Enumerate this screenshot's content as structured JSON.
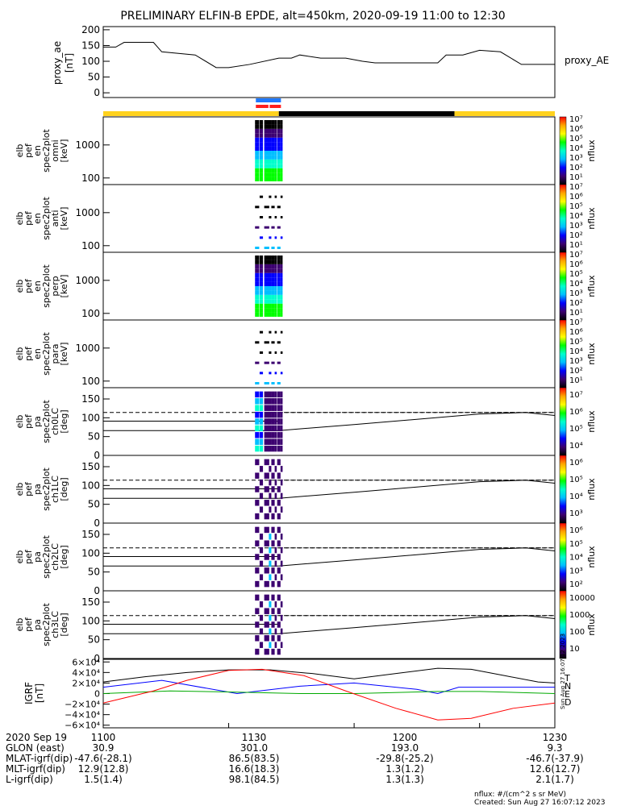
{
  "title": "PRELIMINARY ELFIN-B EPDE, alt=450km, 2020-09-19 11:00 to 12:30",
  "colors": {
    "phase_yellow": "#ffd21e",
    "phase_black": "#000000",
    "phase_blue": "#1e78ff",
    "phase_red": "#ff1e1e",
    "ae_line": "#000000",
    "lc_line": "#000000",
    "grf_T": "#000000",
    "grf_N": "#0000ff",
    "grf_E": "#00aa00",
    "grf_D": "#ff0000",
    "colorbar": [
      "#ff0000",
      "#ffa500",
      "#ffff00",
      "#00ff00",
      "#00ffcc",
      "#00bfff",
      "#0000ff",
      "#3c0070",
      "#000000"
    ]
  },
  "chart_data": [
    {
      "type": "line",
      "panel": "proxy_ae",
      "ylabel": [
        "proxy_ae",
        "[nT]"
      ],
      "right_label": "proxy_AE",
      "ylim": [
        -15,
        210
      ],
      "yticks": [
        0,
        50,
        100,
        150,
        200
      ],
      "x_minutes": [
        0,
        3,
        5,
        12,
        14,
        22,
        27,
        30,
        35,
        42,
        45,
        47,
        52,
        58,
        62,
        65,
        75,
        80,
        82,
        86,
        90,
        95,
        100,
        108
      ],
      "values": [
        145,
        145,
        160,
        160,
        130,
        120,
        80,
        80,
        90,
        110,
        110,
        120,
        110,
        110,
        100,
        95,
        95,
        95,
        120,
        120,
        135,
        130,
        90,
        90
      ]
    },
    {
      "type": "bar",
      "panel": "orbit_phase",
      "segments": [
        {
          "start": 0,
          "end": 42,
          "color": "yellow"
        },
        {
          "start": 42,
          "end": 84,
          "color": "black"
        },
        {
          "start": 84,
          "end": 108,
          "color": "yellow"
        }
      ],
      "blue_markers": [
        [
          36.5,
          42.5
        ]
      ],
      "red_markers": [
        [
          36.5,
          39.5
        ],
        [
          39.8,
          42.5
        ]
      ]
    },
    {
      "type": "heatmap",
      "panel": "omni",
      "ylabel": [
        "elb",
        "pef",
        "en",
        "spec2plot",
        "omni",
        "[keV]"
      ],
      "yticks": [
        "1000",
        "100"
      ],
      "colorbar": {
        "label": "nflux",
        "ticks": [
          "10^7",
          "10^6",
          "10^5",
          "10^4",
          "10^3",
          "10^2",
          "10^1"
        ]
      },
      "active_minutes": [
        36,
        43
      ],
      "peak_color_index": 3
    },
    {
      "type": "heatmap",
      "panel": "anti",
      "ylabel": [
        "elb",
        "pef",
        "en",
        "spec2plot",
        "anti",
        "[keV]"
      ],
      "yticks": [
        "1000",
        "100"
      ],
      "colorbar": {
        "label": "nflux",
        "ticks": [
          "10^7",
          "10^6",
          "10^5",
          "10^4",
          "10^3",
          "10^2",
          "10^1"
        ]
      },
      "active_minutes": [
        36,
        43
      ],
      "peak_color_index": 5
    },
    {
      "type": "heatmap",
      "panel": "perp",
      "ylabel": [
        "elb",
        "pef",
        "en",
        "spec2plot",
        "perp",
        "[keV]"
      ],
      "yticks": [
        "1000",
        "100"
      ],
      "colorbar": {
        "label": "nflux",
        "ticks": [
          "10^7",
          "10^6",
          "10^5",
          "10^4",
          "10^3",
          "10^2",
          "10^1"
        ]
      },
      "active_minutes": [
        36,
        43
      ],
      "peak_color_index": 3
    },
    {
      "type": "heatmap",
      "panel": "para",
      "ylabel": [
        "elb",
        "pef",
        "en",
        "spec2plot",
        "para",
        "[keV]"
      ],
      "yticks": [
        "1000",
        "100"
      ],
      "colorbar": {
        "label": "nflux",
        "ticks": [
          "10^7",
          "10^6",
          "10^5",
          "10^4",
          "10^3",
          "10^2",
          "10^1"
        ]
      },
      "active_minutes": [
        36,
        43
      ],
      "peak_color_index": 5
    },
    {
      "type": "heatmap",
      "panel": "ch0LC",
      "ylabel": [
        "elb",
        "pef",
        "pa",
        "spec2plot",
        "ch0LC",
        "[deg]"
      ],
      "ylim": [
        0,
        180
      ],
      "yticks": [
        0,
        50,
        100,
        150
      ],
      "lc_x": [
        42,
        60,
        90,
        101,
        108
      ],
      "lc_y": [
        66,
        82,
        110,
        114,
        106
      ],
      "dashed_y": 114,
      "solid_y": [
        91,
        66
      ],
      "colorbar": {
        "label": "nflux",
        "ticks": [
          "10^7",
          "10^6",
          "10^5",
          "10^4"
        ]
      }
    },
    {
      "type": "heatmap",
      "panel": "ch1LC",
      "ylabel": [
        "elb",
        "pef",
        "pa",
        "spec2plot",
        "ch1LC",
        "[deg]"
      ],
      "ylim": [
        0,
        180
      ],
      "yticks": [
        0,
        50,
        100,
        150
      ],
      "lc_x": [
        42,
        60,
        90,
        101,
        108
      ],
      "lc_y": [
        66,
        82,
        110,
        114,
        106
      ],
      "dashed_y": 114,
      "solid_y": [
        91,
        66
      ],
      "colorbar": {
        "label": "nflux",
        "ticks": [
          "10^6",
          "10^5",
          "10^4",
          "10^3"
        ]
      }
    },
    {
      "type": "heatmap",
      "panel": "ch2LC",
      "ylabel": [
        "elb",
        "pef",
        "pa",
        "spec2plot",
        "ch2LC",
        "[deg]"
      ],
      "ylim": [
        0,
        180
      ],
      "yticks": [
        0,
        50,
        100,
        150
      ],
      "lc_x": [
        42,
        60,
        90,
        101,
        108
      ],
      "lc_y": [
        66,
        82,
        110,
        114,
        106
      ],
      "dashed_y": 114,
      "solid_y": [
        91,
        66
      ],
      "colorbar": {
        "label": "nflux",
        "ticks": [
          "10^6",
          "10^5",
          "10^4",
          "10^3",
          "10^2"
        ]
      }
    },
    {
      "type": "heatmap",
      "panel": "ch3LC",
      "ylabel": [
        "elb",
        "pef",
        "pa",
        "spec2plot",
        "ch3LC",
        "[deg]"
      ],
      "ylim": [
        0,
        180
      ],
      "yticks": [
        0,
        50,
        100,
        150
      ],
      "lc_x": [
        42,
        60,
        90,
        101,
        108
      ],
      "lc_y": [
        66,
        82,
        110,
        114,
        106
      ],
      "dashed_y": 114,
      "solid_y": [
        91,
        66
      ],
      "colorbar": {
        "label": "nflux",
        "ticks": [
          "10000",
          "1000",
          "100",
          "10"
        ]
      }
    },
    {
      "type": "line",
      "panel": "IGRF",
      "ylabel": [
        "IGRF",
        "[nT]"
      ],
      "ylim": [
        -65000,
        65000
      ],
      "yticks": [
        "6×10⁴",
        "4×10⁴",
        "2×10⁴",
        "0",
        "−2×10⁴",
        "−4×10⁴",
        "−6×10⁴"
      ],
      "ytick_values": [
        60000,
        40000,
        20000,
        0,
        -20000,
        -40000,
        -60000
      ],
      "series": [
        {
          "name": "T",
          "color_key": "grf_T",
          "x": [
            0,
            10,
            20,
            30,
            40,
            50,
            60,
            70,
            80,
            88,
            96,
            104,
            108
          ],
          "y": [
            22000,
            32000,
            40000,
            45000,
            45000,
            38000,
            28000,
            38000,
            48000,
            46000,
            34000,
            22000,
            20000
          ]
        },
        {
          "name": "N",
          "color_key": "grf_N",
          "x": [
            0,
            14,
            32,
            47,
            60,
            75,
            80,
            85,
            96,
            108
          ],
          "y": [
            12000,
            25000,
            0,
            14000,
            20000,
            8000,
            0,
            12000,
            12000,
            12000
          ]
        },
        {
          "name": "E",
          "color_key": "grf_E",
          "x": [
            0,
            16,
            30,
            47,
            60,
            80,
            90,
            108
          ],
          "y": [
            0,
            5000,
            3000,
            0,
            0,
            4000,
            4000,
            0
          ]
        },
        {
          "name": "D",
          "color_key": "grf_D",
          "x": [
            0,
            12,
            20,
            30,
            38,
            48,
            58,
            70,
            80,
            88,
            98,
            108
          ],
          "y": [
            -18000,
            5000,
            25000,
            44000,
            46000,
            34000,
            5000,
            -28000,
            -50000,
            -47000,
            -28000,
            -18000
          ]
        }
      ]
    }
  ],
  "colorbars": {
    "energy": [
      "10⁷",
      "10⁶",
      "10⁵",
      "10⁴",
      "10³",
      "10²",
      "10¹"
    ],
    "ch0": [
      "10⁷",
      "10⁶",
      "10⁵",
      "10⁴"
    ],
    "ch1": [
      "10⁶",
      "10⁵",
      "10⁴",
      "10³"
    ],
    "ch2": [
      "10⁶",
      "10⁵",
      "10⁴",
      "10³",
      "10²"
    ],
    "ch3": [
      "10000",
      "1000",
      "100",
      "10"
    ],
    "label": "nflux"
  },
  "side_stamp": "Sun Aug 27 16:07:12 2023",
  "ephemeris": {
    "date": "2020 Sep 19",
    "times": [
      "1100",
      "1130",
      "1200",
      "1230"
    ],
    "rows": [
      {
        "label": "GLON (east)",
        "values": [
          "30.9",
          "301.0",
          "193.0",
          "9.3"
        ]
      },
      {
        "label": "MLAT-igrf(dip)",
        "values": [
          "-47.6(-28.1)",
          "86.5(83.5)",
          "-29.8(-25.2)",
          "-46.7(-37.9)"
        ]
      },
      {
        "label": "MLT-igrf(dip)",
        "values": [
          "12.9(12.8)",
          "16.6(18.3)",
          "1.3(1.2)",
          "12.6(12.7)"
        ]
      },
      {
        "label": "L-igrf(dip)",
        "values": [
          "1.5(1.4)",
          "98.1(84.5)",
          "1.3(1.3)",
          "2.1(1.7)"
        ]
      }
    ]
  },
  "footer": {
    "units": "nflux: #/(cm^2 s sr MeV)",
    "created": "Created: Sun Aug 27 16:07:12 2023"
  }
}
